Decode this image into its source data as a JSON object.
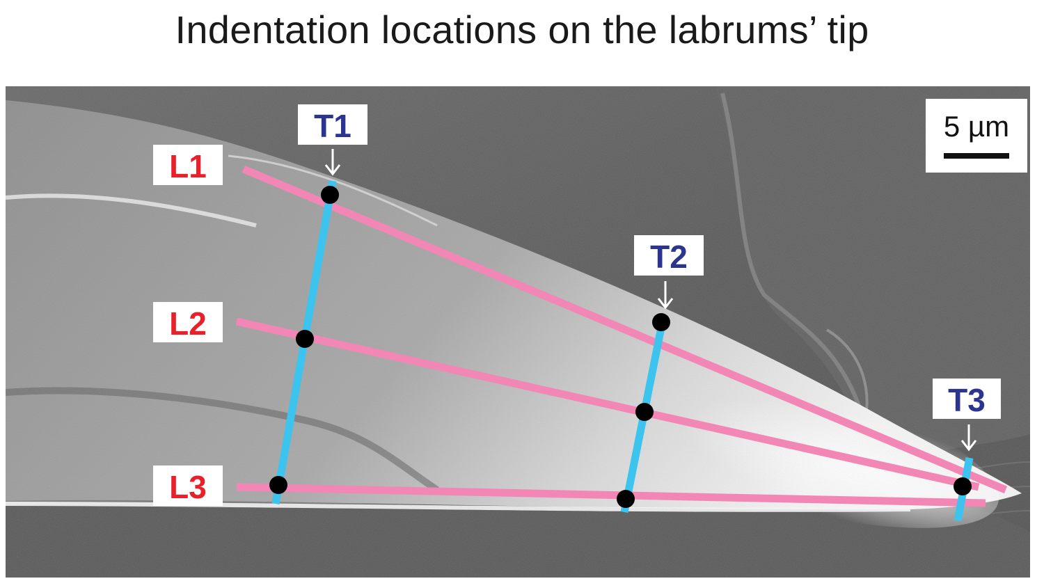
{
  "title": "Indentation locations on the labrums’ tip",
  "scale_bar": {
    "label": "5 µm"
  },
  "longitudinal_lines": [
    {
      "label": "L1"
    },
    {
      "label": "L2"
    },
    {
      "label": "L3"
    }
  ],
  "transverse_lines": [
    {
      "label": "T1"
    },
    {
      "label": "T2"
    },
    {
      "label": "T3"
    }
  ],
  "colors": {
    "longitudinal_line": "#f287b6",
    "transverse_line": "#3cc4ef",
    "longitudinal_label": "#e8202a",
    "transverse_label": "#2b3590",
    "indentation_point": "#000000",
    "label_box": "#ffffff"
  }
}
